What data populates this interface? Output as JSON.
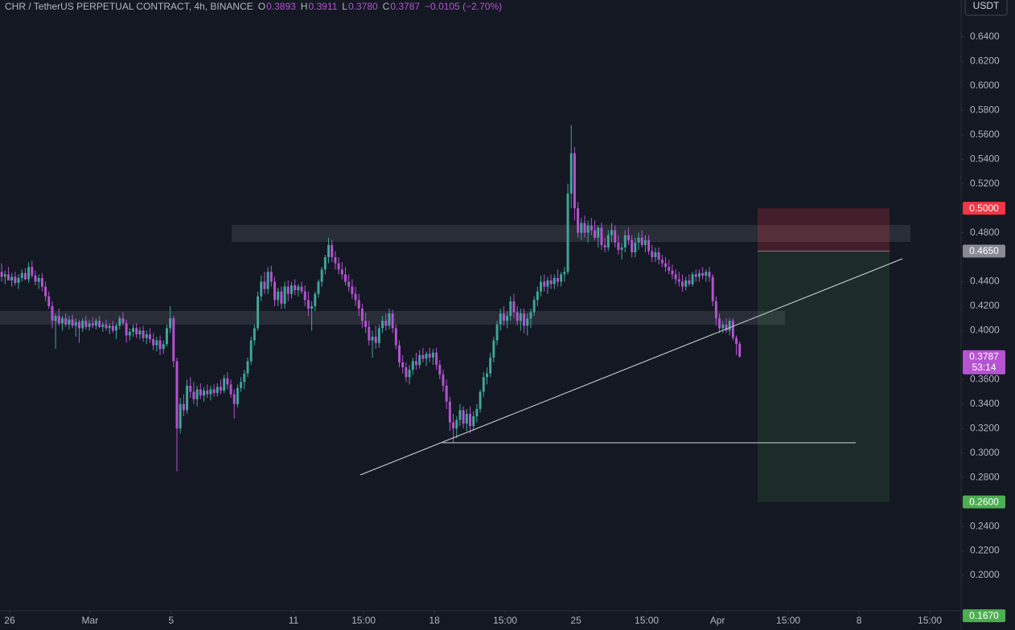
{
  "chart_data": {
    "type": "candlestick",
    "title": "CHR / TetherUS PERPETUAL CONTRACT, 4h, BINANCE",
    "ohlc_legend": [
      {
        "label": "O",
        "value": "0.3893"
      },
      {
        "label": "H",
        "value": "0.3911"
      },
      {
        "label": "L",
        "value": "0.3780"
      },
      {
        "label": "C",
        "value": "0.3787"
      }
    ],
    "change": "−0.0105 (−2.70%)",
    "currency": "USDT",
    "up_color": "#3fa69a",
    "down_color": "#b553d1",
    "grid": false,
    "xlim": [
      -0.5,
      284.7
    ],
    "xticks": [
      {
        "value": 2.36,
        "label": "26"
      },
      {
        "value": 26.2,
        "label": "Mar"
      },
      {
        "value": 50.3,
        "label": "5"
      },
      {
        "value": 86.6,
        "label": "11"
      },
      {
        "value": 107.4,
        "label": "15:00"
      },
      {
        "value": 128.4,
        "label": "18"
      },
      {
        "value": 149.4,
        "label": "15:00"
      },
      {
        "value": 170.4,
        "label": "25"
      },
      {
        "value": 191.4,
        "label": "15:00"
      },
      {
        "value": 212.4,
        "label": "Apr"
      },
      {
        "value": 233.4,
        "label": "15:00"
      },
      {
        "value": 254.4,
        "label": "8"
      },
      {
        "value": 275.4,
        "label": "15:00"
      }
    ],
    "ylim": [
      0.1711,
      0.6702
    ],
    "yticks": [
      {
        "value": 0.64,
        "label": "0.6400"
      },
      {
        "value": 0.62,
        "label": "0.6200"
      },
      {
        "value": 0.6,
        "label": "0.6000"
      },
      {
        "value": 0.58,
        "label": "0.5800"
      },
      {
        "value": 0.56,
        "label": "0.5600"
      },
      {
        "value": 0.54,
        "label": "0.5400"
      },
      {
        "value": 0.52,
        "label": "0.5200"
      },
      {
        "value": 0.48,
        "label": "0.4800"
      },
      {
        "value": 0.44,
        "label": "0.4400"
      },
      {
        "value": 0.42,
        "label": "0.4200"
      },
      {
        "value": 0.4,
        "label": "0.4000"
      },
      {
        "value": 0.36,
        "label": "0.3600"
      },
      {
        "value": 0.34,
        "label": "0.3400"
      },
      {
        "value": 0.32,
        "label": "0.3200"
      },
      {
        "value": 0.3,
        "label": "0.3000"
      },
      {
        "value": 0.28,
        "label": "0.2800"
      },
      {
        "value": 0.24,
        "label": "0.2400"
      },
      {
        "value": 0.22,
        "label": "0.2200"
      },
      {
        "value": 0.2,
        "label": "0.2000"
      }
    ],
    "position": {
      "stop": {
        "value": 0.5,
        "label": "0.5000",
        "color": "#f23645"
      },
      "entry": {
        "value": 0.465,
        "label": "0.4650",
        "color": "#878a93"
      },
      "target": {
        "value": 0.26,
        "label": "0.2600",
        "color": "#4caf50"
      }
    },
    "current_price": {
      "value": 0.3787,
      "label": "0.3787",
      "countdown": "53:14",
      "color": "#b553d1"
    },
    "alert_price": {
      "value": 0.167,
      "label": "0.1670",
      "color": "#4caf50"
    },
    "candles": [
      [
        0.448,
        0.455,
        0.44,
        0.444
      ],
      [
        0.444,
        0.449,
        0.438,
        0.446
      ],
      [
        0.446,
        0.452,
        0.442,
        0.441
      ],
      [
        0.441,
        0.447,
        0.436,
        0.444
      ],
      [
        0.444,
        0.448,
        0.437,
        0.439
      ],
      [
        0.439,
        0.446,
        0.434,
        0.443
      ],
      [
        0.443,
        0.45,
        0.44,
        0.447
      ],
      [
        0.447,
        0.451,
        0.441,
        0.442
      ],
      [
        0.442,
        0.456,
        0.439,
        0.452
      ],
      [
        0.452,
        0.457,
        0.443,
        0.445
      ],
      [
        0.445,
        0.449,
        0.437,
        0.44
      ],
      [
        0.44,
        0.446,
        0.434,
        0.443
      ],
      [
        0.443,
        0.447,
        0.432,
        0.436
      ],
      [
        0.436,
        0.44,
        0.424,
        0.428
      ],
      [
        0.428,
        0.432,
        0.418,
        0.42
      ],
      [
        0.42,
        0.424,
        0.402,
        0.408
      ],
      [
        0.408,
        0.414,
        0.385,
        0.412
      ],
      [
        0.412,
        0.418,
        0.404,
        0.406
      ],
      [
        0.406,
        0.412,
        0.4,
        0.41
      ],
      [
        0.41,
        0.414,
        0.403,
        0.405
      ],
      [
        0.405,
        0.412,
        0.401,
        0.409
      ],
      [
        0.409,
        0.413,
        0.402,
        0.404
      ],
      [
        0.404,
        0.41,
        0.395,
        0.407
      ],
      [
        0.407,
        0.409,
        0.39,
        0.402
      ],
      [
        0.402,
        0.41,
        0.399,
        0.408
      ],
      [
        0.408,
        0.412,
        0.401,
        0.403
      ],
      [
        0.403,
        0.409,
        0.4,
        0.406
      ],
      [
        0.406,
        0.411,
        0.402,
        0.404
      ],
      [
        0.404,
        0.41,
        0.401,
        0.408
      ],
      [
        0.408,
        0.412,
        0.402,
        0.403
      ],
      [
        0.403,
        0.407,
        0.399,
        0.405
      ],
      [
        0.405,
        0.409,
        0.4,
        0.402
      ],
      [
        0.402,
        0.406,
        0.397,
        0.404
      ],
      [
        0.404,
        0.408,
        0.398,
        0.4
      ],
      [
        0.4,
        0.406,
        0.393,
        0.404
      ],
      [
        0.404,
        0.412,
        0.401,
        0.41
      ],
      [
        0.41,
        0.415,
        0.404,
        0.406
      ],
      [
        0.406,
        0.409,
        0.39,
        0.396
      ],
      [
        0.396,
        0.402,
        0.392,
        0.399
      ],
      [
        0.399,
        0.405,
        0.395,
        0.402
      ],
      [
        0.402,
        0.406,
        0.394,
        0.397
      ],
      [
        0.397,
        0.403,
        0.393,
        0.4
      ],
      [
        0.4,
        0.404,
        0.391,
        0.394
      ],
      [
        0.394,
        0.4,
        0.389,
        0.397
      ],
      [
        0.397,
        0.402,
        0.39,
        0.393
      ],
      [
        0.393,
        0.398,
        0.384,
        0.388
      ],
      [
        0.388,
        0.395,
        0.383,
        0.392
      ],
      [
        0.392,
        0.396,
        0.38,
        0.385
      ],
      [
        0.385,
        0.392,
        0.381,
        0.389
      ],
      [
        0.389,
        0.405,
        0.387,
        0.402
      ],
      [
        0.402,
        0.42,
        0.398,
        0.41
      ],
      [
        0.41,
        0.412,
        0.37,
        0.375
      ],
      [
        0.375,
        0.378,
        0.285,
        0.32
      ],
      [
        0.32,
        0.345,
        0.316,
        0.34
      ],
      [
        0.34,
        0.348,
        0.33,
        0.335
      ],
      [
        0.335,
        0.36,
        0.332,
        0.355
      ],
      [
        0.355,
        0.362,
        0.345,
        0.35
      ],
      [
        0.35,
        0.358,
        0.34,
        0.344
      ],
      [
        0.344,
        0.355,
        0.338,
        0.352
      ],
      [
        0.352,
        0.357,
        0.344,
        0.347
      ],
      [
        0.347,
        0.354,
        0.342,
        0.351
      ],
      [
        0.351,
        0.356,
        0.345,
        0.348
      ],
      [
        0.348,
        0.355,
        0.343,
        0.352
      ],
      [
        0.352,
        0.356,
        0.346,
        0.349
      ],
      [
        0.349,
        0.357,
        0.346,
        0.354
      ],
      [
        0.354,
        0.36,
        0.348,
        0.351
      ],
      [
        0.351,
        0.364,
        0.349,
        0.361
      ],
      [
        0.361,
        0.366,
        0.352,
        0.356
      ],
      [
        0.356,
        0.36,
        0.345,
        0.348
      ],
      [
        0.348,
        0.352,
        0.328,
        0.34
      ],
      [
        0.34,
        0.356,
        0.337,
        0.353
      ],
      [
        0.353,
        0.362,
        0.35,
        0.358
      ],
      [
        0.358,
        0.368,
        0.352,
        0.365
      ],
      [
        0.365,
        0.378,
        0.362,
        0.375
      ],
      [
        0.375,
        0.395,
        0.372,
        0.392
      ],
      [
        0.392,
        0.405,
        0.388,
        0.402
      ],
      [
        0.402,
        0.432,
        0.4,
        0.428
      ],
      [
        0.428,
        0.445,
        0.424,
        0.44
      ],
      [
        0.44,
        0.448,
        0.43,
        0.434
      ],
      [
        0.434,
        0.452,
        0.43,
        0.448
      ],
      [
        0.448,
        0.453,
        0.436,
        0.44
      ],
      [
        0.44,
        0.444,
        0.42,
        0.425
      ],
      [
        0.425,
        0.435,
        0.42,
        0.432
      ],
      [
        0.432,
        0.436,
        0.418,
        0.422
      ],
      [
        0.422,
        0.44,
        0.418,
        0.436
      ],
      [
        0.436,
        0.441,
        0.424,
        0.43
      ],
      [
        0.43,
        0.44,
        0.426,
        0.437
      ],
      [
        0.437,
        0.442,
        0.429,
        0.433
      ],
      [
        0.433,
        0.438,
        0.428,
        0.436
      ],
      [
        0.436,
        0.44,
        0.43,
        0.432
      ],
      [
        0.432,
        0.437,
        0.42,
        0.425
      ],
      [
        0.425,
        0.432,
        0.412,
        0.418
      ],
      [
        0.418,
        0.424,
        0.4,
        0.42
      ],
      [
        0.42,
        0.432,
        0.416,
        0.43
      ],
      [
        0.43,
        0.442,
        0.427,
        0.44
      ],
      [
        0.44,
        0.452,
        0.436,
        0.45
      ],
      [
        0.45,
        0.462,
        0.446,
        0.46
      ],
      [
        0.46,
        0.476,
        0.455,
        0.47
      ],
      [
        0.47,
        0.474,
        0.456,
        0.46
      ],
      [
        0.46,
        0.465,
        0.45,
        0.455
      ],
      [
        0.455,
        0.46,
        0.446,
        0.45
      ],
      [
        0.45,
        0.456,
        0.442,
        0.446
      ],
      [
        0.446,
        0.452,
        0.437,
        0.44
      ],
      [
        0.44,
        0.446,
        0.432,
        0.436
      ],
      [
        0.436,
        0.442,
        0.426,
        0.43
      ],
      [
        0.43,
        0.436,
        0.42,
        0.425
      ],
      [
        0.425,
        0.43,
        0.412,
        0.418
      ],
      [
        0.418,
        0.422,
        0.402,
        0.408
      ],
      [
        0.408,
        0.415,
        0.398,
        0.403
      ],
      [
        0.403,
        0.408,
        0.388,
        0.392
      ],
      [
        0.392,
        0.4,
        0.378,
        0.395
      ],
      [
        0.395,
        0.404,
        0.385,
        0.39
      ],
      [
        0.39,
        0.405,
        0.386,
        0.402
      ],
      [
        0.402,
        0.412,
        0.398,
        0.408
      ],
      [
        0.408,
        0.414,
        0.4,
        0.404
      ],
      [
        0.404,
        0.418,
        0.401,
        0.414
      ],
      [
        0.414,
        0.417,
        0.398,
        0.402
      ],
      [
        0.402,
        0.405,
        0.385,
        0.388
      ],
      [
        0.388,
        0.392,
        0.37,
        0.374
      ],
      [
        0.374,
        0.38,
        0.365,
        0.37
      ],
      [
        0.37,
        0.374,
        0.358,
        0.362
      ],
      [
        0.362,
        0.372,
        0.356,
        0.368
      ],
      [
        0.368,
        0.378,
        0.364,
        0.375
      ],
      [
        0.375,
        0.382,
        0.368,
        0.372
      ],
      [
        0.372,
        0.384,
        0.369,
        0.38
      ],
      [
        0.38,
        0.386,
        0.374,
        0.377
      ],
      [
        0.377,
        0.383,
        0.371,
        0.381
      ],
      [
        0.381,
        0.386,
        0.374,
        0.378
      ],
      [
        0.378,
        0.385,
        0.372,
        0.382
      ],
      [
        0.382,
        0.386,
        0.368,
        0.372
      ],
      [
        0.372,
        0.376,
        0.36,
        0.364
      ],
      [
        0.364,
        0.368,
        0.35,
        0.355
      ],
      [
        0.355,
        0.36,
        0.336,
        0.342
      ],
      [
        0.342,
        0.346,
        0.318,
        0.325
      ],
      [
        0.325,
        0.332,
        0.308,
        0.32
      ],
      [
        0.32,
        0.33,
        0.312,
        0.327
      ],
      [
        0.327,
        0.34,
        0.322,
        0.335
      ],
      [
        0.335,
        0.338,
        0.32,
        0.324
      ],
      [
        0.324,
        0.336,
        0.318,
        0.332
      ],
      [
        0.332,
        0.338,
        0.316,
        0.322
      ],
      [
        0.322,
        0.334,
        0.318,
        0.33
      ],
      [
        0.33,
        0.34,
        0.325,
        0.336
      ],
      [
        0.336,
        0.352,
        0.333,
        0.35
      ],
      [
        0.35,
        0.366,
        0.346,
        0.362
      ],
      [
        0.362,
        0.37,
        0.356,
        0.365
      ],
      [
        0.365,
        0.382,
        0.362,
        0.378
      ],
      [
        0.378,
        0.395,
        0.374,
        0.392
      ],
      [
        0.392,
        0.408,
        0.388,
        0.405
      ],
      [
        0.405,
        0.418,
        0.4,
        0.414
      ],
      [
        0.414,
        0.42,
        0.404,
        0.408
      ],
      [
        0.408,
        0.416,
        0.402,
        0.412
      ],
      [
        0.412,
        0.428,
        0.408,
        0.424
      ],
      [
        0.424,
        0.43,
        0.41,
        0.415
      ],
      [
        0.415,
        0.42,
        0.404,
        0.408
      ],
      [
        0.408,
        0.418,
        0.4,
        0.414
      ],
      [
        0.414,
        0.418,
        0.398,
        0.404
      ],
      [
        0.404,
        0.414,
        0.396,
        0.41
      ],
      [
        0.41,
        0.418,
        0.402,
        0.415
      ],
      [
        0.415,
        0.428,
        0.412,
        0.425
      ],
      [
        0.425,
        0.436,
        0.42,
        0.432
      ],
      [
        0.432,
        0.445,
        0.428,
        0.44
      ],
      [
        0.44,
        0.446,
        0.432,
        0.436
      ],
      [
        0.436,
        0.444,
        0.43,
        0.441
      ],
      [
        0.441,
        0.446,
        0.434,
        0.438
      ],
      [
        0.438,
        0.446,
        0.434,
        0.443
      ],
      [
        0.443,
        0.45,
        0.436,
        0.44
      ],
      [
        0.44,
        0.448,
        0.436,
        0.446
      ],
      [
        0.446,
        0.452,
        0.44,
        0.448
      ],
      [
        0.448,
        0.52,
        0.446,
        0.512
      ],
      [
        0.512,
        0.568,
        0.5,
        0.545
      ],
      [
        0.545,
        0.55,
        0.49,
        0.5
      ],
      [
        0.5,
        0.505,
        0.476,
        0.48
      ],
      [
        0.48,
        0.492,
        0.474,
        0.488
      ],
      [
        0.488,
        0.494,
        0.476,
        0.48
      ],
      [
        0.48,
        0.49,
        0.472,
        0.486
      ],
      [
        0.486,
        0.492,
        0.478,
        0.482
      ],
      [
        0.482,
        0.49,
        0.474,
        0.476
      ],
      [
        0.476,
        0.486,
        0.468,
        0.484
      ],
      [
        0.484,
        0.488,
        0.466,
        0.47
      ],
      [
        0.47,
        0.476,
        0.464,
        0.468
      ],
      [
        0.468,
        0.482,
        0.465,
        0.478
      ],
      [
        0.478,
        0.488,
        0.472,
        0.482
      ],
      [
        0.482,
        0.486,
        0.468,
        0.472
      ],
      [
        0.472,
        0.478,
        0.462,
        0.466
      ],
      [
        0.466,
        0.472,
        0.458,
        0.468
      ],
      [
        0.468,
        0.482,
        0.464,
        0.478
      ],
      [
        0.478,
        0.484,
        0.47,
        0.474
      ],
      [
        0.474,
        0.478,
        0.46,
        0.464
      ],
      [
        0.464,
        0.476,
        0.46,
        0.472
      ],
      [
        0.472,
        0.48,
        0.466,
        0.476
      ],
      [
        0.476,
        0.482,
        0.468,
        0.47
      ],
      [
        0.47,
        0.478,
        0.464,
        0.474
      ],
      [
        0.474,
        0.478,
        0.462,
        0.465
      ],
      [
        0.465,
        0.47,
        0.456,
        0.46
      ],
      [
        0.46,
        0.468,
        0.456,
        0.464
      ],
      [
        0.464,
        0.468,
        0.454,
        0.458
      ],
      [
        0.458,
        0.462,
        0.452,
        0.455
      ],
      [
        0.455,
        0.46,
        0.448,
        0.452
      ],
      [
        0.452,
        0.458,
        0.446,
        0.449
      ],
      [
        0.449,
        0.454,
        0.442,
        0.446
      ],
      [
        0.446,
        0.45,
        0.438,
        0.442
      ],
      [
        0.442,
        0.448,
        0.436,
        0.44
      ],
      [
        0.44,
        0.446,
        0.432,
        0.436
      ],
      [
        0.436,
        0.444,
        0.433,
        0.441
      ],
      [
        0.441,
        0.446,
        0.436,
        0.438
      ],
      [
        0.438,
        0.448,
        0.436,
        0.446
      ],
      [
        0.446,
        0.45,
        0.44,
        0.444
      ],
      [
        0.444,
        0.45,
        0.44,
        0.447
      ],
      [
        0.447,
        0.452,
        0.442,
        0.445
      ],
      [
        0.445,
        0.45,
        0.44,
        0.448
      ],
      [
        0.448,
        0.452,
        0.44,
        0.444
      ],
      [
        0.444,
        0.446,
        0.42,
        0.424
      ],
      [
        0.424,
        0.428,
        0.404,
        0.41
      ],
      [
        0.41,
        0.414,
        0.398,
        0.402
      ],
      [
        0.402,
        0.408,
        0.398,
        0.405
      ],
      [
        0.405,
        0.41,
        0.398,
        0.4
      ],
      [
        0.4,
        0.41,
        0.396,
        0.408
      ],
      [
        0.408,
        0.41,
        0.392,
        0.394
      ],
      [
        0.394,
        0.396,
        0.38,
        0.389
      ],
      [
        0.3893,
        0.3911,
        0.378,
        0.3787
      ]
    ]
  }
}
